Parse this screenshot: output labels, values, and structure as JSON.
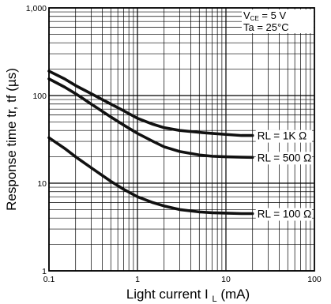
{
  "chart_data": {
    "type": "line",
    "xlabel_main": "Light current I",
    "xlabel_sub": "L",
    "xlabel_unit": " (mA)",
    "ylabel": "Response time tr, tf (µs)",
    "x_scale": "log",
    "y_scale": "log",
    "xlim": [
      0.1,
      100
    ],
    "ylim": [
      1,
      1000
    ],
    "grid": true,
    "x_ticks": [
      {
        "value": 0.1,
        "label": "0.1"
      },
      {
        "value": 1,
        "label": "1"
      },
      {
        "value": 10,
        "label": "10"
      },
      {
        "value": 100,
        "label": "100"
      }
    ],
    "y_ticks": [
      {
        "value": 1,
        "label": "1"
      },
      {
        "value": 10,
        "label": "10"
      },
      {
        "value": 100,
        "label": "100"
      },
      {
        "value": 1000,
        "label": "1,000"
      }
    ],
    "conditions": [
      {
        "main": "V",
        "sub": "CE",
        "rest": " = 5 V"
      },
      {
        "main": "Ta = 25°C",
        "sub": "",
        "rest": ""
      }
    ],
    "series": [
      {
        "name": "RL = 1K Ω",
        "x": [
          0.1,
          0.15,
          0.2,
          0.3,
          0.5,
          0.7,
          1,
          1.5,
          2,
          3,
          5,
          7,
          10,
          15,
          20
        ],
        "y": [
          190,
          155,
          130,
          105,
          80,
          67,
          55,
          47,
          43,
          40,
          38,
          37,
          36,
          35,
          35
        ]
      },
      {
        "name": "RL = 500 Ω",
        "x": [
          0.1,
          0.15,
          0.2,
          0.3,
          0.5,
          0.7,
          1,
          1.5,
          2,
          3,
          5,
          7,
          10,
          15,
          20
        ],
        "y": [
          155,
          125,
          105,
          80,
          57,
          46,
          37,
          30,
          26,
          23,
          21,
          20.3,
          20,
          19.8,
          19.7
        ]
      },
      {
        "name": "RL = 100 Ω",
        "x": [
          0.1,
          0.15,
          0.2,
          0.3,
          0.5,
          0.7,
          1,
          1.5,
          2,
          3,
          5,
          7,
          10,
          15,
          20
        ],
        "y": [
          33,
          25,
          20,
          15,
          10.5,
          8.5,
          7,
          6,
          5.5,
          5,
          4.7,
          4.6,
          4.55,
          4.5,
          4.5
        ]
      }
    ]
  }
}
